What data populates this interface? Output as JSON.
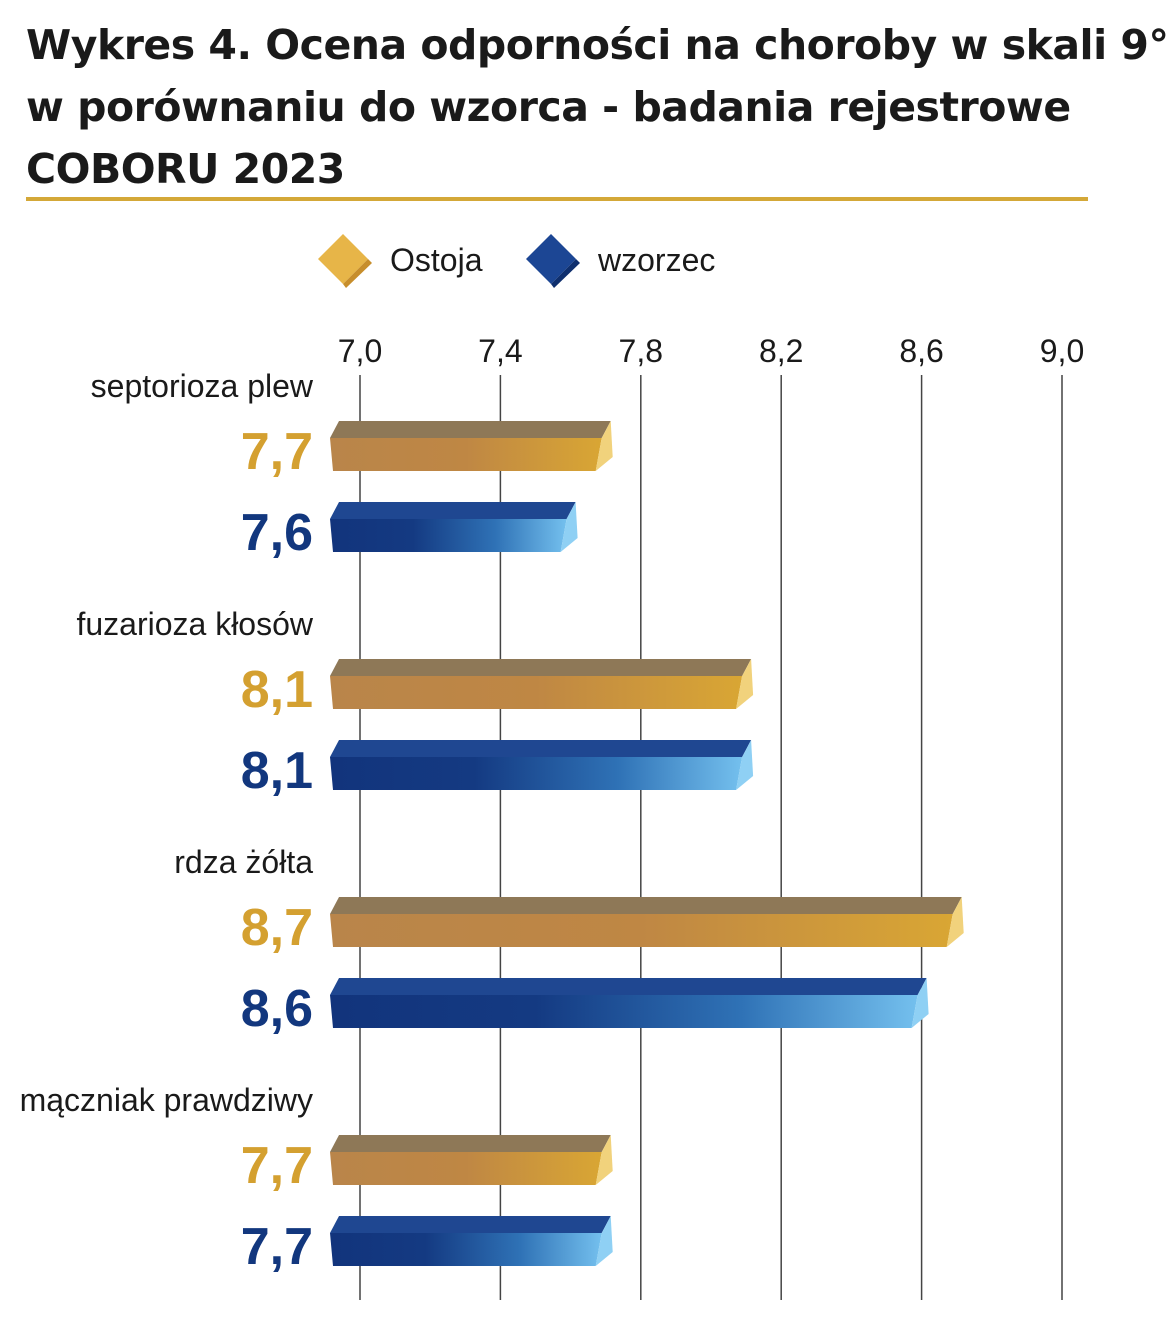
{
  "title": {
    "lines": [
      "Wykres 4. Ocena odporności na choroby w skali 9°",
      "w porównaniu do wzorca - badania rejestrowe",
      "COBORU 2023"
    ]
  },
  "colors": {
    "rule": "#d4a838",
    "ostoja_label": "#d4a030",
    "wzorzec_label": "#12377e"
  },
  "chart_data": {
    "type": "bar",
    "orientation": "horizontal",
    "xlim": [
      7.0,
      9.0
    ],
    "ticks": [
      {
        "value": 7.0,
        "label": "7,0"
      },
      {
        "value": 7.4,
        "label": "7,4"
      },
      {
        "value": 7.8,
        "label": "7,8"
      },
      {
        "value": 8.2,
        "label": "8,2"
      },
      {
        "value": 8.6,
        "label": "8,6"
      },
      {
        "value": 9.0,
        "label": "9,0"
      }
    ],
    "grid": true,
    "legend_position": "top",
    "categories": [
      "septorioza plew",
      "fuzarioza kłosów",
      "rdza żółta",
      "mączniak prawdziwy"
    ],
    "series": [
      {
        "name": "Ostoja",
        "color": "#d4a030",
        "values": [
          7.7,
          8.1,
          8.7,
          7.7
        ],
        "labels": [
          "7,7",
          "8,1",
          "8,7",
          "7,7"
        ]
      },
      {
        "name": "wzorzec",
        "color": "#12377e",
        "values": [
          7.6,
          8.1,
          8.6,
          7.7
        ],
        "labels": [
          "7,6",
          "8,1",
          "8,6",
          "7,7"
        ]
      }
    ]
  }
}
